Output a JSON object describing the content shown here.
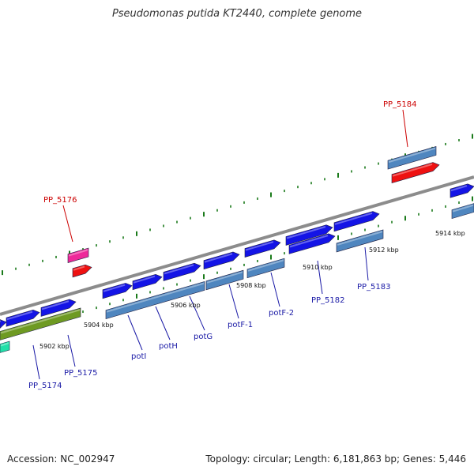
{
  "title": "Pseudomonas putida KT2440, complete genome",
  "footer": {
    "accession": "Accession: NC_002947",
    "summary": "Topology: circular; Length: 6,181,863 bp; Genes: 5,446"
  },
  "colors": {
    "backbone": "#8c8c8c",
    "tick": "#1a7a1a",
    "gene_blue": "#1414e6",
    "gene_steel": "#4f86bf",
    "gene_olive": "#6e9a22",
    "gene_red": "#ee1111",
    "gene_pink": "#ee2a9a",
    "gene_teal": "#22e0a8",
    "label_blue": "#1a1aa6",
    "label_red": "#cc0000"
  },
  "scale_labels": [
    "5902 kbp",
    "5904 kbp",
    "5906 kbp",
    "5908 kbp",
    "5910 kbp",
    "5912 kbp",
    "5914 kbp"
  ],
  "gene_labels": [
    {
      "text": "PP_5174",
      "color": "blue"
    },
    {
      "text": "PP_5175",
      "color": "blue"
    },
    {
      "text": "potI",
      "color": "blue"
    },
    {
      "text": "potH",
      "color": "blue"
    },
    {
      "text": "potG",
      "color": "blue"
    },
    {
      "text": "potF-1",
      "color": "blue"
    },
    {
      "text": "potF-2",
      "color": "blue"
    },
    {
      "text": "PP_5182",
      "color": "blue"
    },
    {
      "text": "PP_5183",
      "color": "blue"
    },
    {
      "text": "PP_5176",
      "color": "red"
    },
    {
      "text": "PP_5184",
      "color": "red"
    }
  ]
}
